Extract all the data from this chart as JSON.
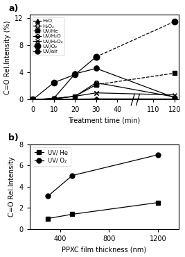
{
  "panel_a": {
    "xlabel": "Treatment time (min)",
    "ylabel": "C=O Rel.Intensity (%)",
    "ylim": [
      0,
      12.5
    ],
    "yticks": [
      0,
      4,
      8,
      12
    ],
    "xticks_left": [
      0,
      10,
      20,
      30,
      40
    ],
    "xticks_right": [
      110,
      120
    ],
    "series": [
      {
        "label": "H₂O",
        "x": [
          0,
          10,
          20,
          30
        ],
        "y": [
          0,
          0.05,
          0.08,
          0.12
        ],
        "x_right": [
          120
        ],
        "y_right": [
          0.1
        ],
        "marker": "^",
        "color": "black",
        "fillstyle": "full",
        "ms": 4
      },
      {
        "label": "H₂O₂",
        "x": [
          0,
          10,
          20,
          30
        ],
        "y": [
          0,
          0.05,
          0.08,
          0.08
        ],
        "x_right": [
          120
        ],
        "y_right": [
          0.05
        ],
        "marker": "o",
        "color": "black",
        "fillstyle": "none",
        "ms": 4
      },
      {
        "label": "UV/He",
        "x": [
          0,
          10,
          20,
          30
        ],
        "y": [
          0,
          0.15,
          0.5,
          2.2
        ],
        "x_right": [
          120
        ],
        "y_right": [
          3.9
        ],
        "marker": "s",
        "color": "black",
        "fillstyle": "full",
        "ms": 4,
        "dashed_right": true
      },
      {
        "label": "UV/H₂O",
        "x": [
          0,
          10,
          20,
          30
        ],
        "y": [
          0,
          0.15,
          0.5,
          2.5
        ],
        "x_right": [
          120
        ],
        "y_right": [
          0.4
        ],
        "marker": "o",
        "color": "black",
        "fillstyle": "bottom",
        "ms": 4,
        "dashed_right": false
      },
      {
        "label": "UV/H₂O₂",
        "x": [
          0,
          10,
          20,
          30
        ],
        "y": [
          0,
          0.15,
          0.5,
          1.0
        ],
        "x_right": [
          120
        ],
        "y_right": [
          0.7
        ],
        "marker": "x",
        "color": "black",
        "fillstyle": "full",
        "ms": 4,
        "dashed_right": false
      },
      {
        "label": "UV/O₂",
        "x": [
          0,
          10,
          20,
          30
        ],
        "y": [
          0,
          2.5,
          3.7,
          6.3
        ],
        "x_right": [
          120
        ],
        "y_right": [
          11.5
        ],
        "marker": "o",
        "color": "black",
        "fillstyle": "full",
        "ms": 6,
        "dashed_right": true
      },
      {
        "label": "UV/air",
        "x": [
          0,
          10,
          20,
          30
        ],
        "y": [
          0,
          0.2,
          3.8,
          4.6
        ],
        "x_right": [
          120
        ],
        "y_right": [
          0.3
        ],
        "marker": "o",
        "color": "black",
        "fillstyle": "full",
        "ms": 5,
        "dashed_right": false
      }
    ]
  },
  "panel_b": {
    "xlabel": "PPXC film thickness (nm)",
    "ylabel": "C=O Rel.Intensity",
    "ylim": [
      0,
      8
    ],
    "yticks": [
      0,
      2,
      4,
      6,
      8
    ],
    "xticks": [
      400,
      800,
      1200
    ],
    "series": [
      {
        "label": "UV/ He",
        "x": [
          300,
          500,
          1200
        ],
        "y": [
          1.0,
          1.4,
          2.5
        ],
        "marker": "s",
        "color": "black",
        "fillstyle": "full",
        "linestyle": "-",
        "ms": 4
      },
      {
        "label": "UV/ O₂",
        "x": [
          300,
          500,
          1200
        ],
        "y": [
          3.1,
          5.05,
          7.0
        ],
        "marker": "o",
        "color": "black",
        "fillstyle": "full",
        "linestyle": "-",
        "ms": 5
      }
    ]
  }
}
